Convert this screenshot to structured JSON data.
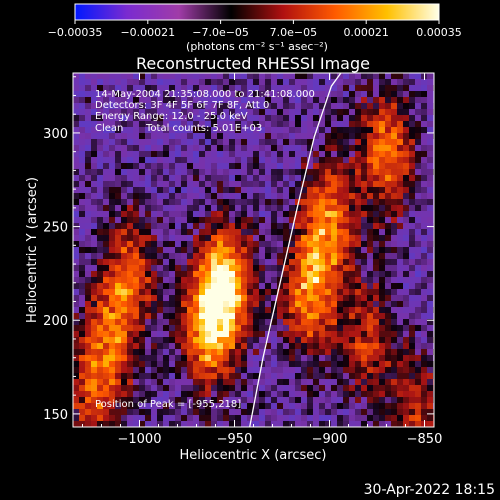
{
  "chart_data": {
    "type": "heatmap",
    "title": "Reconstructed RHESSI Image",
    "xlabel": "Heliocentric X (arcsec)",
    "ylabel": "Heliocentric Y (arcsec)",
    "xlim": [
      -1035,
      -845
    ],
    "ylim": [
      143,
      332
    ],
    "x_ticks": [
      -1000,
      -950,
      -900,
      -850
    ],
    "x_tick_labels": [
      "−1000",
      "−950",
      "−900",
      "−850"
    ],
    "y_ticks": [
      150,
      200,
      250,
      300
    ],
    "y_tick_labels": [
      "150",
      "200",
      "250",
      "300"
    ],
    "colorbar": {
      "range": [
        -0.00035,
        0.00035
      ],
      "ticks": [
        -0.00035,
        -0.00021,
        -7e-05,
        7e-05,
        0.00021,
        0.00035
      ],
      "tick_labels": [
        "−0.00035",
        "−0.00021",
        "−7.0e−05",
        "7.0e−05",
        "0.00021",
        "0.00035"
      ],
      "unit_label": "(photons cm⁻² s⁻¹ asec⁻²)",
      "colors": [
        "#0018ff",
        "#7a2bd0",
        "#a03ca8",
        "#000000",
        "#b01010",
        "#ff5a00",
        "#ffc000",
        "#ffffe8"
      ]
    },
    "annotations": [
      "14-May-2004 21:35:08.000 to 21:41:08.000",
      "Detectors: 3F 4F 5F 6F 7F 8F, Att 0",
      "Energy Range: 12.0 - 25.0 keV",
      "Clean",
      "Total counts: 5.01E+03",
      "Position of Peak = [-955,218]"
    ],
    "limb_curve": [
      [
        -942,
        143
      ],
      [
        -935,
        180
      ],
      [
        -926,
        220
      ],
      [
        -917,
        260
      ],
      [
        -908,
        298
      ],
      [
        -899,
        325
      ],
      [
        -894,
        332
      ]
    ],
    "bright_sources": [
      {
        "x": -955,
        "y": 218,
        "peak": 1.0
      },
      {
        "x": -965,
        "y": 195,
        "peak": 0.75
      },
      {
        "x": -1005,
        "y": 225,
        "peak": 0.6
      },
      {
        "x": -1015,
        "y": 190,
        "peak": 0.55
      },
      {
        "x": -1025,
        "y": 160,
        "peak": 0.5
      },
      {
        "x": -910,
        "y": 215,
        "peak": 0.8
      },
      {
        "x": -900,
        "y": 255,
        "peak": 0.7
      },
      {
        "x": -870,
        "y": 290,
        "peak": 0.75
      },
      {
        "x": -880,
        "y": 190,
        "peak": 0.5
      },
      {
        "x": -855,
        "y": 150,
        "peak": 0.45
      }
    ]
  },
  "footer": {
    "timestamp": "30-Apr-2022 18:15"
  }
}
